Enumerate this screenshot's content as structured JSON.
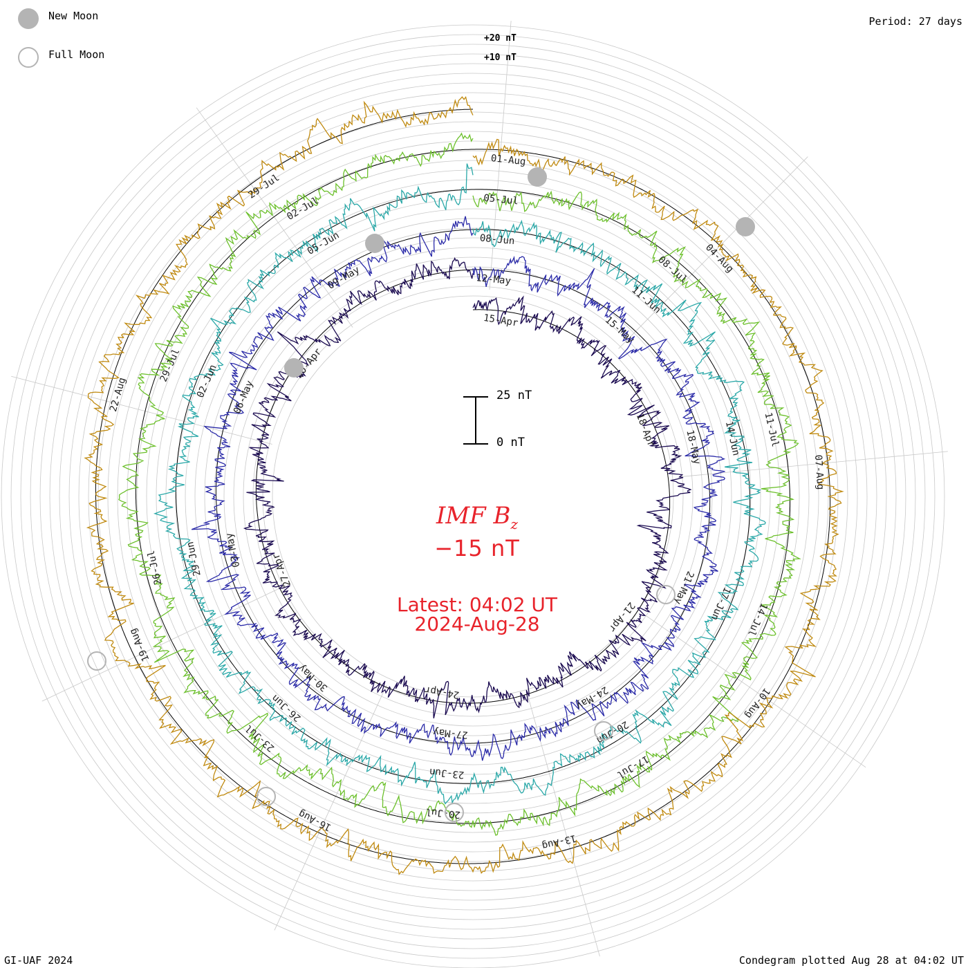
{
  "legend": {
    "new_moon": "New Moon",
    "full_moon": "Full Moon"
  },
  "header": {
    "period": "Period: 27 days"
  },
  "footer": {
    "credit": "GI-UAF 2024",
    "plotted": "Condegram plotted Aug 28 at 04:02 UT"
  },
  "center": {
    "parameter_name": "IMF B",
    "parameter_subscript": "z",
    "parameter_value": "−15 nT",
    "latest_time": "Latest: 04:02 UT",
    "latest_date": "2024-Aug-28"
  },
  "scale_bar": {
    "top_label": "25 nT",
    "bottom_label": "0 nT"
  },
  "ring_labels": {
    "plus20": "+20 nT",
    "plus10": "+10 nT"
  },
  "colors": {
    "accent_text": "#e8232b",
    "moon_marker": "#b4b4b4",
    "grid": "#b0b0b0"
  },
  "chart_data": {
    "type": "line",
    "subtype": "spiral condegram",
    "parameter": "IMF Bz",
    "units": "nT",
    "period_days": 27,
    "latest": "2024-Aug-28 04:02 UT",
    "latest_value": -15,
    "grid": true,
    "series": [
      {
        "start": "2024-Apr-14",
        "end": "2024-May-11",
        "color": "#1a0a50",
        "date_labels": [
          "15-Apr",
          "18-Apr",
          "21-Apr",
          "24-Apr",
          "27-Apr",
          "30-Apr"
        ]
      },
      {
        "start": "2024-May-11",
        "end": "2024-Jun-07",
        "color": "#2a2aa8",
        "date_labels": [
          "12-May",
          "15-May",
          "18-May",
          "21-May",
          "24-May",
          "27-May",
          "30-May",
          "03-May",
          "06-May",
          "09-May"
        ]
      },
      {
        "start": "2024-Jun-07",
        "end": "2024-Jul-04",
        "color": "#2aa8a8",
        "date_labels": [
          "08-Jun",
          "11-Jun",
          "14-Jun",
          "17-Jun",
          "20-Jun",
          "23-Jun",
          "26-Jun",
          "29-Jun",
          "02-Jun",
          "05-Jun"
        ]
      },
      {
        "start": "2024-Jul-04",
        "end": "2024-Jul-31",
        "color": "#6cc02c",
        "date_labels": [
          "05-Jul",
          "08-Jul",
          "11-Jul",
          "14-Jul",
          "17-Jul",
          "20-Jul",
          "23-Jul",
          "26-Jul",
          "29-Jul",
          "02-Jul"
        ]
      },
      {
        "start": "2024-Jul-31",
        "end": "2024-Aug-28",
        "color": "#c08a10",
        "date_labels": [
          "01-Aug",
          "04-Aug",
          "07-Aug",
          "10-Aug",
          "13-Aug",
          "16-Aug",
          "19-Aug",
          "22-Aug",
          "29-Jul"
        ]
      }
    ],
    "outer_label_values": [
      20,
      10
    ],
    "scale_bar_values": [
      0,
      25
    ]
  }
}
